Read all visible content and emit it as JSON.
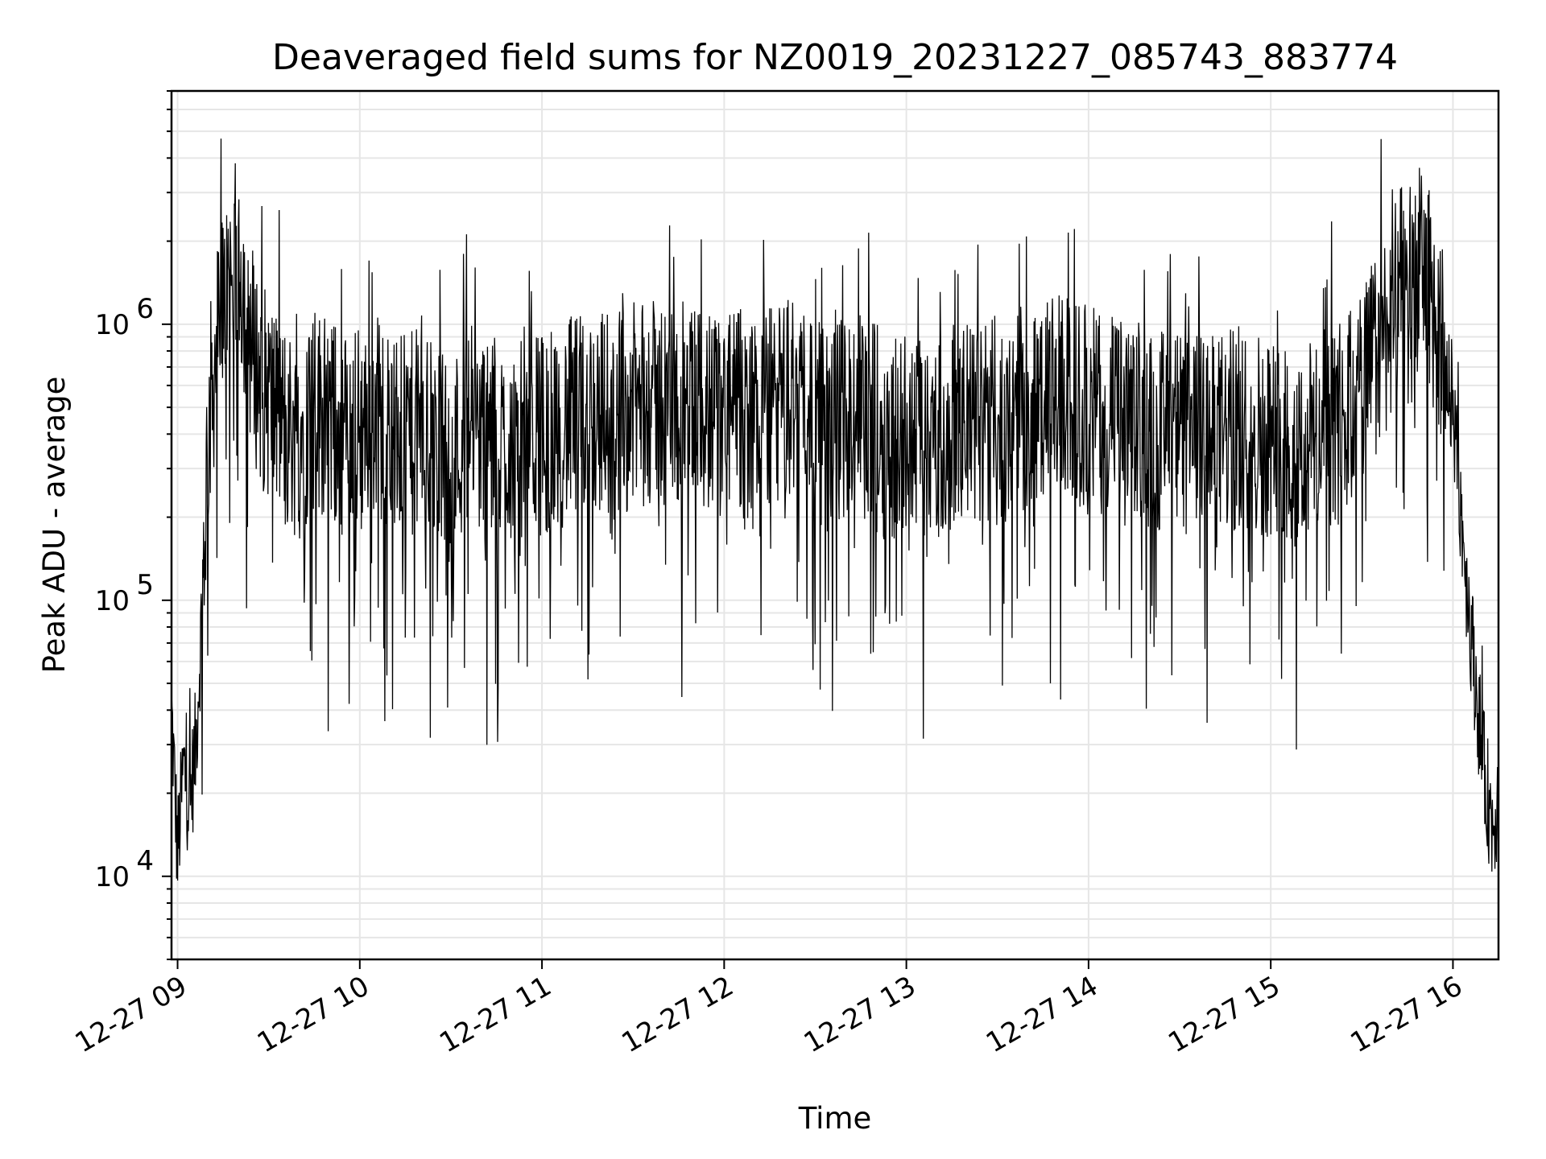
{
  "chart_data": {
    "type": "line",
    "title": "Deaveraged field sums for NZ0019_20231227_085743_883774",
    "xlabel": "Time",
    "ylabel": "Peak ADU - average",
    "x_scale": "time",
    "y_scale": "log",
    "grid": "major and minor",
    "xlim": [
      "2023-12-27 08:58",
      "2023-12-27 16:15"
    ],
    "ylim": [
      5000,
      7000000
    ],
    "x_ticks": [
      "12-27 09",
      "12-27 10",
      "12-27 11",
      "12-27 12",
      "12-27 13",
      "12-27 14",
      "12-27 15",
      "12-27 16"
    ],
    "y_ticks": [
      {
        "label_base": "10",
        "label_exp": "4",
        "value": 10000
      },
      {
        "label_base": "10",
        "label_exp": "5",
        "value": 100000
      },
      {
        "label_base": "10",
        "label_exp": "6",
        "value": 1000000
      }
    ],
    "series": [
      {
        "color": "#000000",
        "x": [
          "08:58",
          "09:00",
          "09:02",
          "09:04",
          "09:06",
          "09:08",
          "09:10",
          "09:12",
          "09:14",
          "09:16",
          "09:18",
          "09:20",
          "09:22",
          "09:24",
          "09:26",
          "09:28",
          "09:30",
          "09:32",
          "09:34",
          "09:36",
          "09:38",
          "09:40",
          "09:45",
          "09:50",
          "09:55",
          "10:00",
          "10:05",
          "10:10",
          "10:15",
          "10:20",
          "10:25",
          "10:30",
          "10:35",
          "10:40",
          "10:45",
          "10:50",
          "10:55",
          "11:00",
          "11:10",
          "11:20",
          "11:30",
          "11:40",
          "11:50",
          "12:00",
          "12:10",
          "12:20",
          "12:25",
          "12:30",
          "12:35",
          "12:40",
          "12:45",
          "12:50",
          "12:55",
          "13:00",
          "13:10",
          "13:20",
          "13:30",
          "13:40",
          "13:45",
          "13:50",
          "14:00",
          "14:10",
          "14:20",
          "14:30",
          "14:40",
          "14:50",
          "15:00",
          "15:05",
          "15:10",
          "15:15",
          "15:20",
          "15:25",
          "15:30",
          "15:35",
          "15:40",
          "15:45",
          "15:50",
          "15:55",
          "16:00",
          "16:05",
          "16:10",
          "16:13",
          "16:15"
        ],
        "y": [
          40000,
          12000,
          25000,
          18000,
          30000,
          90000,
          400000,
          700000,
          1000000,
          1200000,
          1500000,
          1800000,
          1300000,
          900000,
          700000,
          600000,
          550000,
          500000,
          450000,
          420000,
          400000,
          380000,
          500000,
          450000,
          400000,
          420000,
          480000,
          400000,
          380000,
          420000,
          350000,
          300000,
          450000,
          400000,
          350000,
          380000,
          420000,
          400000,
          450000,
          480000,
          500000,
          520000,
          500000,
          480000,
          470000,
          520000,
          600000,
          450000,
          400000,
          480000,
          500000,
          420000,
          380000,
          420000,
          400000,
          430000,
          450000,
          480000,
          500000,
          550000,
          500000,
          450000,
          420000,
          400000,
          380000,
          420000,
          400000,
          380000,
          350000,
          400000,
          420000,
          450000,
          600000,
          800000,
          1100000,
          1500000,
          1600000,
          1000000,
          500000,
          100000,
          25000,
          15000,
          20000
        ]
      }
    ]
  }
}
